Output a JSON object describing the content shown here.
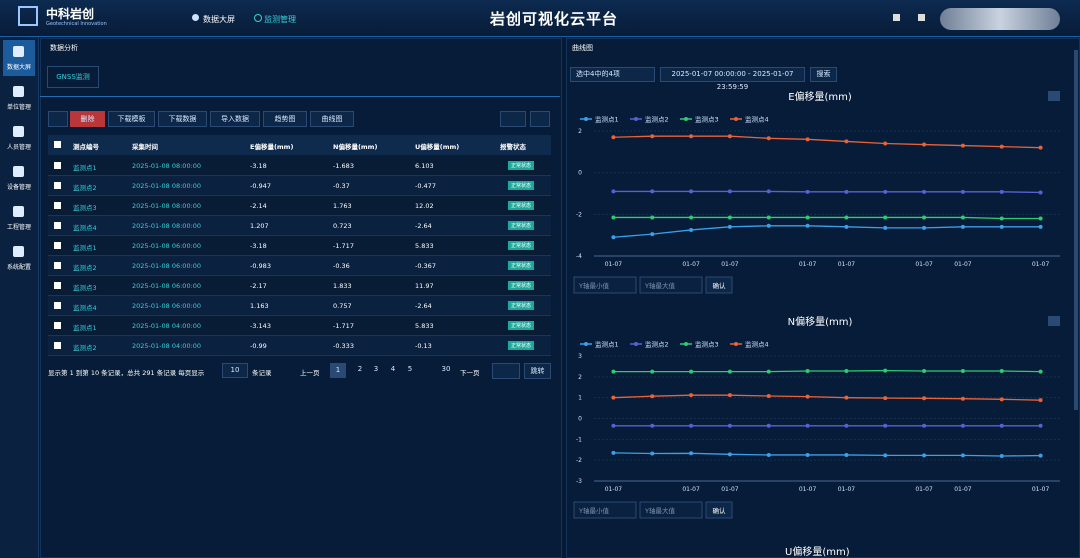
{
  "header": {
    "logo_title": "中科岩创",
    "logo_subtitle": "Geotechnical Innovation",
    "nav": [
      "数据大屏",
      "监测管理"
    ],
    "title": "岩创可视化云平台"
  },
  "sidebar": [
    "数据大屏",
    "单位管理",
    "人员管理",
    "设备管理",
    "工程管理",
    "系统配置"
  ],
  "left_panel": {
    "title": "数据分析",
    "tab": "GNSS监测",
    "toolbar": [
      "删除",
      "下载模板",
      "下载数据",
      "导入数据",
      "趋势图",
      "曲线图"
    ],
    "table": {
      "headers": [
        "测点编号",
        "采集时间",
        "E偏移量(mm)",
        "N偏移量(mm)",
        "U偏移量(mm)",
        "报警状态"
      ],
      "rows": [
        [
          "监测点1",
          "2025-01-08 08:00:00",
          -3.18,
          -1.683,
          6.103,
          "正常状态"
        ],
        [
          "监测点2",
          "2025-01-08 08:00:00",
          -0.947,
          -0.37,
          -0.477,
          "正常状态"
        ],
        [
          "监测点3",
          "2025-01-08 08:00:00",
          -2.14,
          1.763,
          12.02,
          "正常状态"
        ],
        [
          "监测点4",
          "2025-01-08 08:00:00",
          1.207,
          0.723,
          -2.64,
          "正常状态"
        ],
        [
          "监测点1",
          "2025-01-08 06:00:00",
          -3.18,
          -1.717,
          5.833,
          "正常状态"
        ],
        [
          "监测点2",
          "2025-01-08 06:00:00",
          -0.983,
          -0.36,
          -0.367,
          "正常状态"
        ],
        [
          "监测点3",
          "2025-01-08 06:00:00",
          -2.17,
          1.833,
          11.97,
          "正常状态"
        ],
        [
          "监测点4",
          "2025-01-08 06:00:00",
          1.163,
          0.757,
          -2.64,
          "正常状态"
        ],
        [
          "监测点1",
          "2025-01-08 04:00:00",
          -3.143,
          -1.717,
          5.833,
          "正常状态"
        ],
        [
          "监测点2",
          "2025-01-08 04:00:00",
          -0.99,
          -0.333,
          -0.13,
          "正常状态"
        ]
      ]
    },
    "pagination": {
      "info": "显示第 1 到第 10 条记录，总共 291 条记录 每页显示",
      "page_size": 10,
      "page_size_suffix": "条记录",
      "prev": "上一页",
      "pages": [
        1,
        2,
        3,
        4,
        5,
        30
      ],
      "next": "下一页",
      "jump": "跳转"
    }
  },
  "right_panel": {
    "title": "曲线图",
    "select": "选中4中的4项",
    "date_range": "2025-01-07 00:00:00 - 2025-01-07 23:59:59",
    "search": "搜索",
    "y_min_placeholder": "Y轴最小值",
    "y_max_placeholder": "Y轴最大值",
    "confirm": "确认",
    "u_chart_title": "U偏移量(mm)"
  },
  "chart_data": [
    {
      "type": "line",
      "title": "E偏移量(mm)",
      "categories": [
        "01-07",
        null,
        "01-07",
        "01-07",
        null,
        "01-07",
        "01-07",
        null,
        "01-07",
        "01-07",
        null,
        "01-07"
      ],
      "ylim": [
        -4,
        2
      ],
      "yticks": [
        -4,
        -2,
        0,
        2
      ],
      "series": [
        {
          "name": "监测点1",
          "color": "#3ba0e8",
          "values": [
            -3.1,
            -2.95,
            -2.75,
            -2.6,
            -2.55,
            -2.55,
            -2.6,
            -2.65,
            -2.65,
            -2.6,
            -2.6,
            -2.6
          ]
        },
        {
          "name": "监测点2",
          "color": "#5b5fd6",
          "values": [
            -0.9,
            -0.9,
            -0.9,
            -0.9,
            -0.9,
            -0.92,
            -0.92,
            -0.92,
            -0.92,
            -0.92,
            -0.92,
            -0.95
          ]
        },
        {
          "name": "监测点3",
          "color": "#2ecc71",
          "values": [
            -2.15,
            -2.15,
            -2.15,
            -2.15,
            -2.15,
            -2.15,
            -2.15,
            -2.15,
            -2.15,
            -2.15,
            -2.2,
            -2.2
          ]
        },
        {
          "name": "监测点4",
          "color": "#e8633a",
          "values": [
            1.7,
            1.75,
            1.75,
            1.75,
            1.65,
            1.6,
            1.5,
            1.4,
            1.35,
            1.3,
            1.25,
            1.2
          ]
        }
      ]
    },
    {
      "type": "line",
      "title": "N偏移量(mm)",
      "categories": [
        "01-07",
        null,
        "01-07",
        "01-07",
        null,
        "01-07",
        "01-07",
        null,
        "01-07",
        "01-07",
        null,
        "01-07"
      ],
      "ylim": [
        -3,
        3
      ],
      "yticks": [
        -3,
        -2,
        -1,
        0,
        1,
        2,
        3
      ],
      "series": [
        {
          "name": "监测点1",
          "color": "#3ba0e8",
          "values": [
            -1.65,
            -1.68,
            -1.67,
            -1.72,
            -1.75,
            -1.75,
            -1.75,
            -1.77,
            -1.77,
            -1.77,
            -1.8,
            -1.78
          ]
        },
        {
          "name": "监测点2",
          "color": "#5b5fd6",
          "values": [
            -0.35,
            -0.35,
            -0.35,
            -0.35,
            -0.35,
            -0.35,
            -0.35,
            -0.35,
            -0.35,
            -0.35,
            -0.35,
            -0.35
          ]
        },
        {
          "name": "监测点3",
          "color": "#2ecc71",
          "values": [
            2.25,
            2.25,
            2.25,
            2.25,
            2.25,
            2.28,
            2.28,
            2.3,
            2.28,
            2.28,
            2.28,
            2.25
          ]
        },
        {
          "name": "监测点4",
          "color": "#e8633a",
          "values": [
            1.0,
            1.07,
            1.12,
            1.12,
            1.08,
            1.05,
            1.0,
            0.98,
            0.97,
            0.95,
            0.92,
            0.88
          ]
        }
      ]
    }
  ]
}
